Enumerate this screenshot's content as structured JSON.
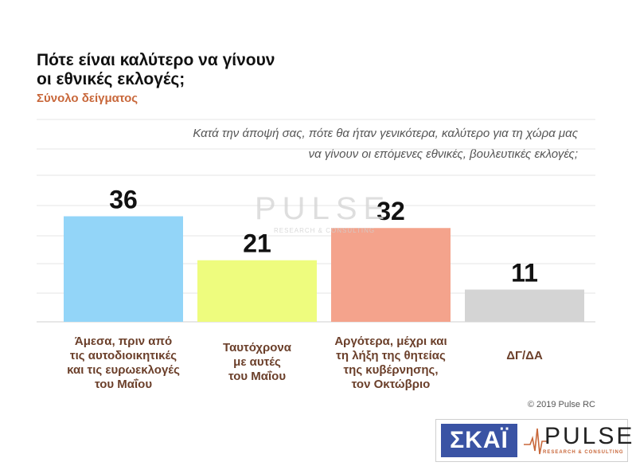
{
  "header": {
    "title_line1": "Πότε είναι καλύτερο να γίνουν",
    "title_line2": "οι εθνικές εκλογές;",
    "subtitle": "Σύνολο δείγματος",
    "question_line1": "Κατά την άποψή σας, πότε θα ήταν γενικότερα, καλύτερο για τη χώρα μας",
    "question_line2": "να γίνουν οι επόμενες εθνικές, βουλευτικές εκλογές;"
  },
  "chart_data": {
    "type": "bar",
    "categories": [
      [
        "Άμεσα, πριν από",
        "τις αυτοδιοικητικές",
        "και τις ευρωεκλογές",
        "του Μαΐου"
      ],
      [
        "Ταυτόχρονα",
        "με αυτές",
        "του Μαΐου"
      ],
      [
        "Αργότερα, μέχρι και",
        "τη λήξη της θητείας",
        "της κυβέρνησης,",
        "τον Οκτώβριο"
      ],
      [
        "ΔΓ/ΔΑ"
      ]
    ],
    "values": [
      36,
      21,
      32,
      11
    ],
    "colors": [
      "#93d5f8",
      "#eefc7e",
      "#f4a38c",
      "#d4d4d4"
    ],
    "ylim": [
      0,
      50
    ],
    "grid": true,
    "xlabel": "",
    "ylabel": ""
  },
  "footer": {
    "copyright": "© 2019 Pulse RC",
    "logo_skai": "ΣΚΑΪ",
    "logo_pulse": "PULSE",
    "logo_pulse_sub": "RESEARCH & CONSULTING"
  },
  "watermark": {
    "word": "PULSE",
    "sub": "RESEARCH & CONSULTING"
  }
}
